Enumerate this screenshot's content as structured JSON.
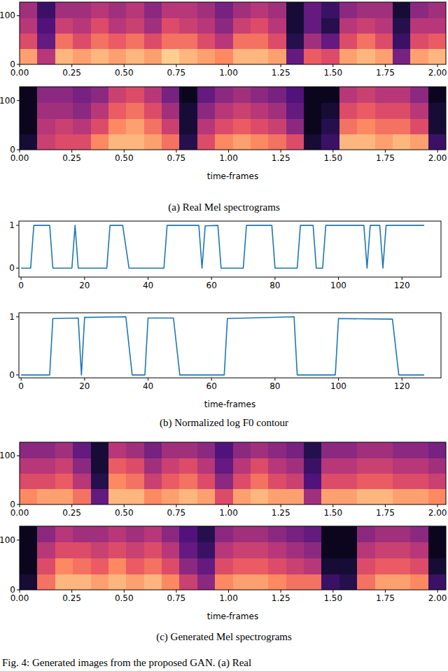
{
  "chart_data": [
    {
      "type": "heatmap",
      "xlim": [
        0,
        2.04
      ],
      "ylim": [
        0,
        128
      ],
      "xticks": [
        {
          "value": 0,
          "label": "0.00"
        },
        {
          "value": 0.25,
          "label": "0.25"
        },
        {
          "value": 0.5,
          "label": "0.50"
        },
        {
          "value": 0.75,
          "label": "0.75"
        },
        {
          "value": 1,
          "label": "1.00"
        },
        {
          "value": 1.25,
          "label": "1.25"
        },
        {
          "value": 1.5,
          "label": "1.50"
        },
        {
          "value": 1.75,
          "label": "1.75"
        },
        {
          "value": 2,
          "label": "2.00"
        }
      ],
      "yticks": [
        0,
        100
      ],
      "x_extent": [
        0,
        2.04
      ],
      "y_extent": [
        0,
        128
      ],
      "cell_range": [
        0,
        1
      ],
      "cells": [
        [
          0.8,
          0.5,
          0.85,
          0.8,
          0.85,
          0.8,
          0.85,
          0.8,
          0.9,
          0.85,
          0.8,
          0.75,
          0.85,
          0.85,
          0.8,
          0.3,
          0.65,
          0.6,
          0.8,
          0.85,
          0.8,
          0.35,
          0.8,
          0.85
        ],
        [
          0.6,
          0.3,
          0.7,
          0.6,
          0.7,
          0.65,
          0.7,
          0.6,
          0.7,
          0.7,
          0.6,
          0.5,
          0.7,
          0.7,
          0.6,
          0.15,
          0.45,
          0.3,
          0.6,
          0.7,
          0.6,
          0.2,
          0.6,
          0.65
        ],
        [
          0.5,
          0.25,
          0.55,
          0.5,
          0.6,
          0.5,
          0.55,
          0.45,
          0.6,
          0.55,
          0.5,
          0.4,
          0.55,
          0.6,
          0.5,
          0.1,
          0.3,
          0.15,
          0.5,
          0.55,
          0.5,
          0.15,
          0.5,
          0.5
        ],
        [
          0.45,
          0.2,
          0.45,
          0.45,
          0.5,
          0.45,
          0.5,
          0.4,
          0.5,
          0.5,
          0.45,
          0.35,
          0.45,
          0.5,
          0.45,
          0.1,
          0.3,
          0.2,
          0.4,
          0.45,
          0.45,
          0.1,
          0.4,
          0.45
        ]
      ]
    },
    {
      "type": "heatmap",
      "xlim": [
        0,
        2.04
      ],
      "ylim": [
        0,
        128
      ],
      "xlabel": "time-frames",
      "xticks": [
        {
          "value": 0,
          "label": "0.00"
        },
        {
          "value": 0.25,
          "label": "0.25"
        },
        {
          "value": 0.5,
          "label": "0.50"
        },
        {
          "value": 0.75,
          "label": "0.75"
        },
        {
          "value": 1,
          "label": "1.00"
        },
        {
          "value": 1.25,
          "label": "1.25"
        },
        {
          "value": 1.5,
          "label": "1.50"
        },
        {
          "value": 1.75,
          "label": "1.75"
        },
        {
          "value": 2,
          "label": "2.00"
        }
      ],
      "yticks": [
        0,
        100
      ],
      "x_extent": [
        0,
        2.04
      ],
      "y_extent": [
        0,
        128
      ],
      "cell_range": [
        0,
        1
      ],
      "cells": [
        [
          0.1,
          0.55,
          0.6,
          0.6,
          0.75,
          0.85,
          0.85,
          0.8,
          0.7,
          0.15,
          0.6,
          0.75,
          0.8,
          0.75,
          0.7,
          0.6,
          0.1,
          0.2,
          0.85,
          0.85,
          0.8,
          0.85,
          0.8,
          0.2
        ],
        [
          0.05,
          0.5,
          0.55,
          0.5,
          0.6,
          0.75,
          0.8,
          0.7,
          0.55,
          0.1,
          0.5,
          0.6,
          0.65,
          0.6,
          0.55,
          0.4,
          0.05,
          0.15,
          0.7,
          0.75,
          0.7,
          0.7,
          0.6,
          0.1
        ],
        [
          0.05,
          0.45,
          0.45,
          0.4,
          0.5,
          0.65,
          0.7,
          0.6,
          0.45,
          0.1,
          0.4,
          0.5,
          0.55,
          0.5,
          0.45,
          0.3,
          0.05,
          0.1,
          0.6,
          0.65,
          0.6,
          0.6,
          0.5,
          0.1
        ],
        [
          0.05,
          0.4,
          0.4,
          0.35,
          0.4,
          0.55,
          0.6,
          0.5,
          0.35,
          0.05,
          0.3,
          0.4,
          0.45,
          0.4,
          0.35,
          0.25,
          0.05,
          0.05,
          0.5,
          0.55,
          0.5,
          0.5,
          0.4,
          0.05
        ]
      ]
    },
    {
      "type": "line",
      "xlim": [
        -0.7,
        132.3
      ],
      "ylim": [
        -0.21,
        1.1
      ],
      "xticks": [
        0,
        20,
        40,
        60,
        80,
        100,
        120
      ],
      "yticks": [
        0,
        1
      ],
      "color": "#1f77b4",
      "x": [
        0,
        3,
        4,
        9,
        10,
        16,
        17,
        18,
        27,
        28,
        32,
        34,
        45,
        46,
        56,
        57,
        58,
        62,
        63,
        70,
        71,
        79,
        80,
        87,
        88,
        92,
        93,
        95,
        96,
        108,
        109,
        110,
        113,
        114,
        115,
        127
      ],
      "values": [
        0,
        0,
        1,
        1,
        0,
        0,
        1,
        0,
        0,
        1,
        1,
        0,
        0,
        1,
        1,
        0,
        0.99,
        1,
        0,
        0,
        1,
        1,
        0,
        0,
        1,
        1,
        0,
        0,
        1,
        1,
        0,
        1,
        1,
        0,
        1,
        1
      ]
    },
    {
      "type": "line",
      "xlim": [
        -0.7,
        132.3
      ],
      "ylim": [
        -0.05,
        1.07
      ],
      "xlabel": "time-frames",
      "xticks": [
        0,
        20,
        40,
        60,
        80,
        100,
        120
      ],
      "yticks": [
        0,
        1
      ],
      "color": "#1f77b4",
      "x": [
        0,
        9,
        10,
        18,
        19,
        20,
        33,
        35,
        39,
        40,
        48,
        50,
        64,
        65,
        86,
        87,
        99,
        100,
        117,
        119,
        127
      ],
      "values": [
        0,
        0,
        0.97,
        0.98,
        0,
        0.99,
        1,
        0,
        0,
        0.98,
        0.98,
        0,
        0,
        0.97,
        1,
        0,
        0,
        0.97,
        0.96,
        0,
        0
      ]
    },
    {
      "type": "heatmap",
      "xlim": [
        0,
        2.04
      ],
      "ylim": [
        0,
        128
      ],
      "xticks": [
        {
          "value": 0,
          "label": "0.00"
        },
        {
          "value": 0.25,
          "label": "0.25"
        },
        {
          "value": 0.5,
          "label": "0.50"
        },
        {
          "value": 0.75,
          "label": "0.75"
        },
        {
          "value": 1,
          "label": "1.00"
        },
        {
          "value": 1.25,
          "label": "1.25"
        },
        {
          "value": 1.5,
          "label": "1.50"
        },
        {
          "value": 1.75,
          "label": "1.75"
        },
        {
          "value": 2,
          "label": "2.00"
        }
      ],
      "yticks": [
        0,
        100
      ],
      "x_extent": [
        0,
        2.04
      ],
      "y_extent": [
        0,
        128
      ],
      "cell_range": [
        0,
        1
      ],
      "cells": [
        [
          0.75,
          0.8,
          0.8,
          0.7,
          0.3,
          0.85,
          0.85,
          0.75,
          0.8,
          0.85,
          0.8,
          0.6,
          0.8,
          0.85,
          0.8,
          0.8,
          0.45,
          0.8,
          0.8,
          0.85,
          0.85,
          0.8,
          0.8,
          0.75
        ],
        [
          0.6,
          0.6,
          0.65,
          0.5,
          0.15,
          0.75,
          0.7,
          0.55,
          0.65,
          0.7,
          0.6,
          0.4,
          0.6,
          0.7,
          0.6,
          0.55,
          0.25,
          0.6,
          0.6,
          0.65,
          0.65,
          0.6,
          0.6,
          0.55
        ],
        [
          0.5,
          0.5,
          0.55,
          0.4,
          0.1,
          0.65,
          0.6,
          0.45,
          0.55,
          0.6,
          0.5,
          0.3,
          0.5,
          0.6,
          0.5,
          0.45,
          0.2,
          0.5,
          0.5,
          0.55,
          0.55,
          0.5,
          0.5,
          0.45
        ],
        [
          0.4,
          0.4,
          0.45,
          0.3,
          0.1,
          0.5,
          0.45,
          0.35,
          0.45,
          0.45,
          0.4,
          0.25,
          0.4,
          0.45,
          0.4,
          0.35,
          0.15,
          0.4,
          0.4,
          0.45,
          0.45,
          0.4,
          0.4,
          0.35
        ]
      ]
    },
    {
      "type": "heatmap",
      "xlim": [
        0,
        2.04
      ],
      "ylim": [
        0,
        128
      ],
      "xlabel": "time-frames",
      "xticks": [
        {
          "value": 0,
          "label": "0.00"
        },
        {
          "value": 0.25,
          "label": "0.25"
        },
        {
          "value": 0.5,
          "label": "0.50"
        },
        {
          "value": 0.75,
          "label": "0.75"
        },
        {
          "value": 1,
          "label": "1.00"
        },
        {
          "value": 1.25,
          "label": "1.25"
        },
        {
          "value": 1.5,
          "label": "1.50"
        },
        {
          "value": 1.75,
          "label": "1.75"
        },
        {
          "value": 2,
          "label": "2.00"
        }
      ],
      "yticks": [
        0,
        100
      ],
      "x_extent": [
        0,
        2.04
      ],
      "y_extent": [
        0,
        128
      ],
      "cell_range": [
        0,
        1
      ],
      "cells": [
        [
          0.1,
          0.7,
          0.85,
          0.85,
          0.8,
          0.85,
          0.8,
          0.85,
          0.75,
          0.55,
          0.4,
          0.75,
          0.8,
          0.8,
          0.75,
          0.7,
          0.7,
          0.2,
          0.15,
          0.7,
          0.8,
          0.8,
          0.75,
          0.2
        ],
        [
          0.05,
          0.6,
          0.75,
          0.7,
          0.65,
          0.75,
          0.65,
          0.7,
          0.6,
          0.4,
          0.3,
          0.6,
          0.65,
          0.65,
          0.6,
          0.55,
          0.5,
          0.1,
          0.1,
          0.6,
          0.65,
          0.65,
          0.6,
          0.1
        ],
        [
          0.05,
          0.5,
          0.6,
          0.6,
          0.55,
          0.6,
          0.55,
          0.6,
          0.5,
          0.3,
          0.2,
          0.5,
          0.55,
          0.55,
          0.5,
          0.45,
          0.4,
          0.05,
          0.05,
          0.5,
          0.55,
          0.55,
          0.5,
          0.05
        ],
        [
          0.05,
          0.4,
          0.5,
          0.45,
          0.45,
          0.5,
          0.45,
          0.5,
          0.4,
          0.25,
          0.15,
          0.4,
          0.45,
          0.45,
          0.4,
          0.35,
          0.3,
          0.05,
          0.05,
          0.4,
          0.45,
          0.45,
          0.4,
          0.05
        ]
      ]
    }
  ],
  "captions": [
    "(a) Real Mel spectrograms",
    "(b) Normalized log F0 contour",
    "(c) Generated Mel spectrograms"
  ],
  "figure_caption": "Fig. 4: Generated images from the proposed GAN. (a) Real"
}
